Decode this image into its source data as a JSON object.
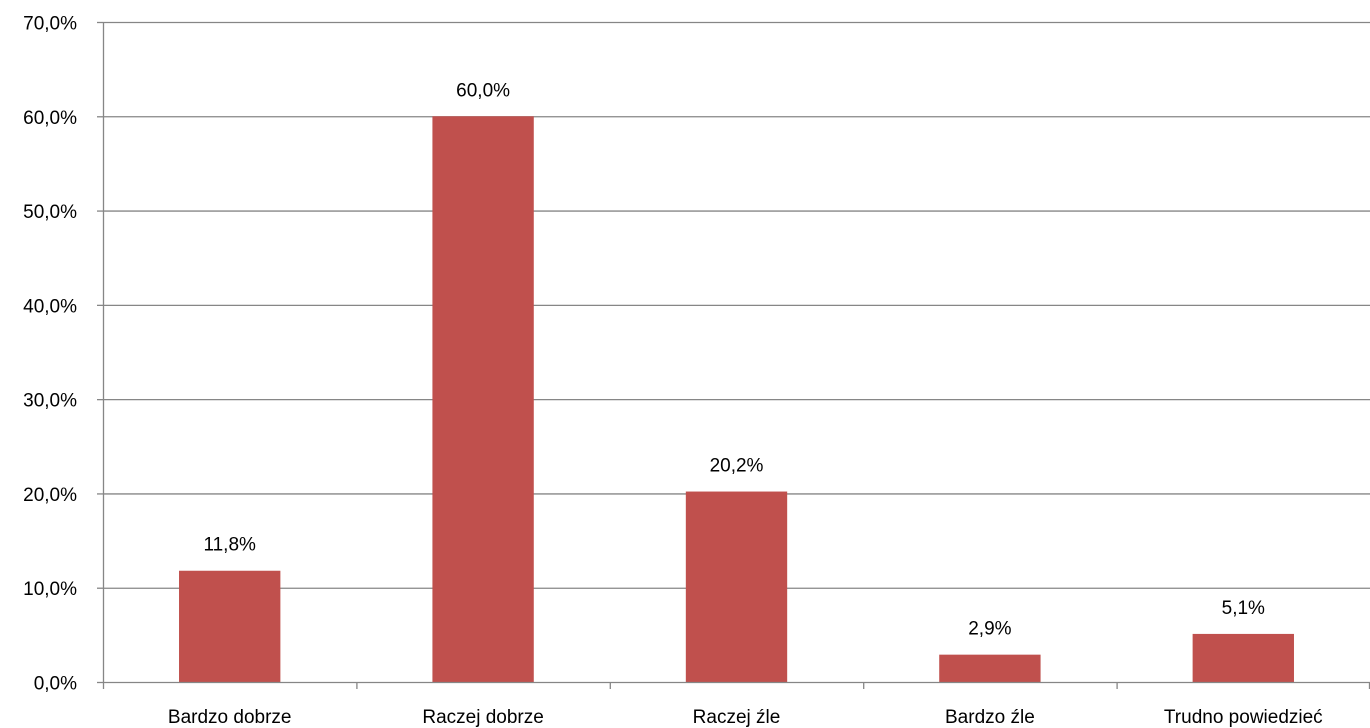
{
  "chart_data": {
    "type": "bar",
    "title": "",
    "xlabel": "",
    "ylabel": "",
    "categories": [
      "Bardzo dobrze",
      "Raczej dobrze",
      "Raczej źle",
      "Bardzo źle",
      "Trudno powiedzieć"
    ],
    "values": [
      11.8,
      60.0,
      20.2,
      2.9,
      5.1
    ],
    "value_labels": [
      "11,8%",
      "60,0%",
      "20,2%",
      "2,9%",
      "5,1%"
    ],
    "ylim": [
      0,
      70
    ],
    "yticks": [
      0,
      10,
      20,
      30,
      40,
      50,
      60,
      70
    ],
    "ytick_labels": [
      "0,0%",
      "10,0%",
      "20,0%",
      "30,0%",
      "40,0%",
      "50,0%",
      "60,0%",
      "70,0%"
    ],
    "grid": true,
    "legend": "none",
    "bar_color": "#C0504D",
    "grid_color": "#868686"
  }
}
